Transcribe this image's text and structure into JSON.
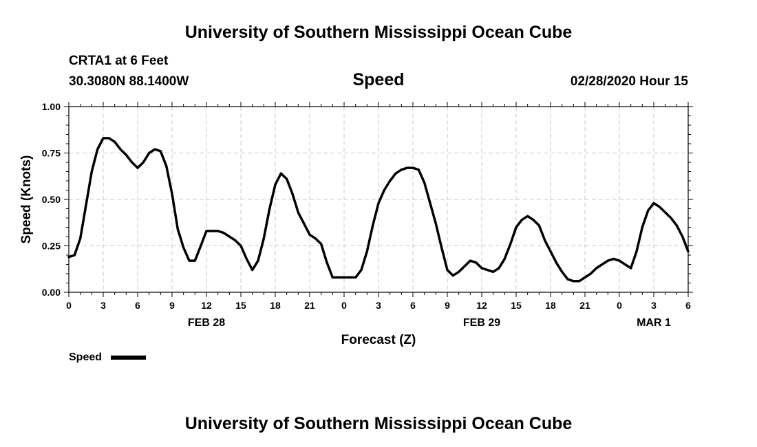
{
  "header": {
    "title_top": "University of Southern Mississippi Ocean Cube",
    "station": "CRTA1 at 6 Feet",
    "coords": "30.3080N 88.1400W",
    "variable": "Speed",
    "valid_time": "02/28/2020 Hour 15",
    "title_bottom": "University of Southern Mississippi Ocean Cube"
  },
  "legend": {
    "label": "Speed"
  },
  "chart_data": {
    "type": "line",
    "title": "Speed",
    "xlabel": "Forecast (Z)",
    "ylabel": "Speed (Knots)",
    "ylim": [
      0,
      1
    ],
    "yticks": [
      "0.00",
      "0.25",
      "0.50",
      "0.75",
      "1.00"
    ],
    "xlim": [
      0,
      54
    ],
    "xticks": [
      "0",
      "3",
      "6",
      "9",
      "12",
      "15",
      "18",
      "21",
      "0",
      "3",
      "6",
      "9",
      "12",
      "15",
      "18",
      "21",
      "0",
      "3",
      "6"
    ],
    "date_labels": [
      {
        "label": "FEB 28",
        "at": 12
      },
      {
        "label": "FEB 29",
        "at": 36
      },
      {
        "label": "MAR 1",
        "at": 51
      }
    ],
    "grid": true,
    "legend_position": "bottom-left",
    "series": [
      {
        "name": "Speed",
        "color": "#000000",
        "x": [
          0,
          0.5,
          1,
          1.5,
          2,
          2.5,
          3,
          3.5,
          4,
          4.5,
          5,
          5.5,
          6,
          6.5,
          7,
          7.5,
          8,
          8.5,
          9,
          9.5,
          10,
          10.5,
          11,
          11.5,
          12,
          12.5,
          13,
          13.5,
          14,
          14.5,
          15,
          15.5,
          16,
          16.5,
          17,
          17.5,
          18,
          18.5,
          19,
          19.5,
          20,
          20.5,
          21,
          21.5,
          22,
          22.5,
          23,
          23.5,
          24,
          24.5,
          25,
          25.5,
          26,
          26.5,
          27,
          27.5,
          28,
          28.5,
          29,
          29.5,
          30,
          30.5,
          31,
          31.5,
          32,
          32.5,
          33,
          33.5,
          34,
          34.5,
          35,
          35.5,
          36,
          36.5,
          37,
          37.5,
          38,
          38.5,
          39,
          39.5,
          40,
          40.5,
          41,
          41.5,
          42,
          42.5,
          43,
          43.5,
          44,
          44.5,
          45,
          45.5,
          46,
          46.5,
          47,
          47.5,
          48,
          48.5,
          49,
          49.5,
          50,
          50.5,
          51,
          51.5,
          52,
          52.5,
          53,
          53.5,
          54
        ],
        "values": [
          0.19,
          0.2,
          0.29,
          0.47,
          0.65,
          0.77,
          0.83,
          0.83,
          0.81,
          0.77,
          0.74,
          0.7,
          0.67,
          0.7,
          0.75,
          0.77,
          0.76,
          0.68,
          0.53,
          0.34,
          0.24,
          0.17,
          0.17,
          0.25,
          0.33,
          0.33,
          0.33,
          0.32,
          0.3,
          0.28,
          0.25,
          0.18,
          0.12,
          0.17,
          0.29,
          0.45,
          0.58,
          0.64,
          0.61,
          0.53,
          0.43,
          0.37,
          0.31,
          0.29,
          0.26,
          0.16,
          0.08,
          0.08,
          0.08,
          0.08,
          0.08,
          0.12,
          0.22,
          0.36,
          0.48,
          0.55,
          0.6,
          0.64,
          0.66,
          0.67,
          0.67,
          0.66,
          0.59,
          0.48,
          0.37,
          0.24,
          0.12,
          0.09,
          0.11,
          0.14,
          0.17,
          0.16,
          0.13,
          0.12,
          0.11,
          0.13,
          0.18,
          0.26,
          0.35,
          0.39,
          0.41,
          0.39,
          0.36,
          0.28,
          0.22,
          0.16,
          0.11,
          0.07,
          0.06,
          0.06,
          0.08,
          0.1,
          0.13,
          0.15,
          0.17,
          0.18,
          0.17,
          0.15,
          0.13,
          0.22,
          0.35,
          0.44,
          0.48,
          0.46,
          0.43,
          0.4,
          0.36,
          0.3,
          0.22
        ]
      }
    ]
  }
}
